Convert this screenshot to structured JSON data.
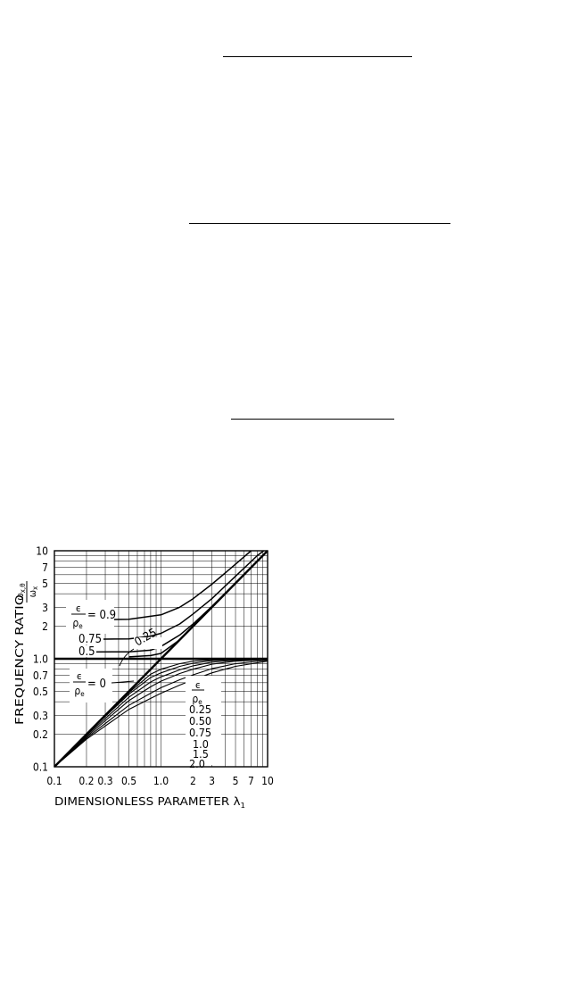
{
  "chart_data": {
    "type": "line",
    "title": "",
    "xlabel": "DIMENSIONLESS PARAMETER λ",
    "xlabel_subscript": "1",
    "ylabel": "FREQUENCY RATIO",
    "ylabel_fraction": {
      "numerator": "ω",
      "numerator_subscript": "x,θ",
      "denominator": "ω",
      "denominator_subscript": "x"
    },
    "x_scale": "log",
    "y_scale": "log",
    "xlim": [
      0.1,
      10
    ],
    "ylim": [
      0.1,
      10
    ],
    "grid": true,
    "x_ticks": [
      {
        "value": 0.1,
        "label": "0.1"
      },
      {
        "value": 0.2,
        "label": "0.2"
      },
      {
        "value": 0.3,
        "label": "0.3"
      },
      {
        "value": 0.5,
        "label": "0.5"
      },
      {
        "value": 1.0,
        "label": "1.0"
      },
      {
        "value": 2,
        "label": "2"
      },
      {
        "value": 3,
        "label": "3"
      },
      {
        "value": 5,
        "label": "5"
      },
      {
        "value": 7,
        "label": "7"
      },
      {
        "value": 10,
        "label": "10"
      }
    ],
    "y_ticks": [
      {
        "value": 0.1,
        "label": "0.1"
      },
      {
        "value": 0.2,
        "label": "0.2"
      },
      {
        "value": 0.3,
        "label": "0.3"
      },
      {
        "value": 0.5,
        "label": "0.5"
      },
      {
        "value": 0.7,
        "label": "0.7"
      },
      {
        "value": 1.0,
        "label": "1.0"
      },
      {
        "value": 2,
        "label": "2"
      },
      {
        "value": 3,
        "label": "3"
      },
      {
        "value": 5,
        "label": "5"
      },
      {
        "value": 7,
        "label": "7"
      },
      {
        "value": 10,
        "label": "10"
      }
    ],
    "parameter_label": {
      "numerator": "ϵ",
      "denominator": "ρ",
      "denominator_subscript": "e"
    },
    "upper_branch": [
      {
        "param": "0.9",
        "label": "= 0.9",
        "points": [
          [
            0.2,
            2.29
          ],
          [
            0.5,
            2.32
          ],
          [
            1.0,
            2.55
          ],
          [
            1.5,
            3.0
          ],
          [
            2.0,
            3.6
          ],
          [
            3.0,
            4.9
          ],
          [
            5.0,
            7.5
          ],
          [
            7.0,
            10.0
          ]
        ]
      },
      {
        "param": "0.75",
        "label": "0.75",
        "points": [
          [
            0.2,
            1.51
          ],
          [
            0.5,
            1.53
          ],
          [
            0.8,
            1.62
          ],
          [
            1.0,
            1.72
          ],
          [
            1.5,
            2.1
          ],
          [
            2.0,
            2.6
          ],
          [
            3.0,
            3.6
          ],
          [
            5.0,
            5.8
          ],
          [
            8.0,
            9.0
          ],
          [
            9.2,
            10.0
          ]
        ]
      },
      {
        "param": "0.5",
        "label": "0.5",
        "points": [
          [
            0.2,
            1.155
          ],
          [
            0.5,
            1.16
          ],
          [
            0.8,
            1.2
          ],
          [
            1.0,
            1.3
          ],
          [
            1.5,
            1.66
          ],
          [
            2.0,
            2.1
          ],
          [
            3.0,
            3.05
          ],
          [
            5.0,
            5.0
          ],
          [
            7.0,
            7.0
          ],
          [
            10.0,
            10.0
          ]
        ]
      },
      {
        "param": "0.25",
        "label": "0.25",
        "points": [
          [
            0.5,
            1.04
          ],
          [
            0.8,
            1.07
          ],
          [
            1.0,
            1.12
          ],
          [
            1.5,
            1.5
          ],
          [
            2.0,
            2.02
          ],
          [
            3.0,
            3.0
          ],
          [
            5.0,
            5.0
          ],
          [
            10.0,
            10.0
          ]
        ]
      },
      {
        "param": "0",
        "label": "= 0",
        "points": [
          [
            0.1,
            0.1
          ],
          [
            1.0,
            1.0
          ],
          [
            10.0,
            10.0
          ]
        ]
      }
    ],
    "unity_line": {
      "points": [
        [
          0.1,
          1.0
        ],
        [
          10.0,
          1.0
        ]
      ]
    },
    "lower_branch": [
      {
        "param": "0.25",
        "label": "0.25",
        "points": [
          [
            0.1,
            0.1
          ],
          [
            0.2,
            0.2
          ],
          [
            0.5,
            0.485
          ],
          [
            0.8,
            0.72
          ],
          [
            1.0,
            0.8
          ],
          [
            1.5,
            0.9
          ],
          [
            2.0,
            0.95
          ],
          [
            3.0,
            0.98
          ],
          [
            5.0,
            0.995
          ],
          [
            10.0,
            1.0
          ]
        ]
      },
      {
        "param": "0.50",
        "label": "0.50",
        "points": [
          [
            0.1,
            0.1
          ],
          [
            0.2,
            0.2
          ],
          [
            0.5,
            0.47
          ],
          [
            0.8,
            0.67
          ],
          [
            1.0,
            0.74
          ],
          [
            1.5,
            0.85
          ],
          [
            2.0,
            0.91
          ],
          [
            3.0,
            0.96
          ],
          [
            5.0,
            0.985
          ],
          [
            10.0,
            0.997
          ]
        ]
      },
      {
        "param": "0.75",
        "label": "0.75",
        "points": [
          [
            0.1,
            0.1
          ],
          [
            0.2,
            0.195
          ],
          [
            0.5,
            0.44
          ],
          [
            0.8,
            0.61
          ],
          [
            1.0,
            0.68
          ],
          [
            1.5,
            0.79
          ],
          [
            2.0,
            0.86
          ],
          [
            3.0,
            0.93
          ],
          [
            5.0,
            0.97
          ],
          [
            10.0,
            0.993
          ]
        ]
      },
      {
        "param": "1.0",
        "label": "1.0",
        "points": [
          [
            0.1,
            0.1
          ],
          [
            0.2,
            0.19
          ],
          [
            0.5,
            0.41
          ],
          [
            0.8,
            0.55
          ],
          [
            1.0,
            0.62
          ],
          [
            1.5,
            0.73
          ],
          [
            2.0,
            0.8
          ],
          [
            3.0,
            0.89
          ],
          [
            5.0,
            0.95
          ],
          [
            10.0,
            0.985
          ]
        ]
      },
      {
        "param": "1.5",
        "label": "1.5",
        "points": [
          [
            0.1,
            0.1
          ],
          [
            0.2,
            0.185
          ],
          [
            0.5,
            0.37
          ],
          [
            0.8,
            0.48
          ],
          [
            1.0,
            0.54
          ],
          [
            1.5,
            0.64
          ],
          [
            2.0,
            0.71
          ],
          [
            3.0,
            0.81
          ],
          [
            5.0,
            0.9
          ],
          [
            10.0,
            0.97
          ]
        ]
      },
      {
        "param": "2.0",
        "label": "2.0",
        "points": [
          [
            0.1,
            0.1
          ],
          [
            0.2,
            0.18
          ],
          [
            0.5,
            0.34
          ],
          [
            0.8,
            0.43
          ],
          [
            1.0,
            0.48
          ],
          [
            1.5,
            0.57
          ],
          [
            2.0,
            0.64
          ],
          [
            3.0,
            0.74
          ],
          [
            5.0,
            0.85
          ],
          [
            10.0,
            0.95
          ]
        ]
      }
    ]
  }
}
